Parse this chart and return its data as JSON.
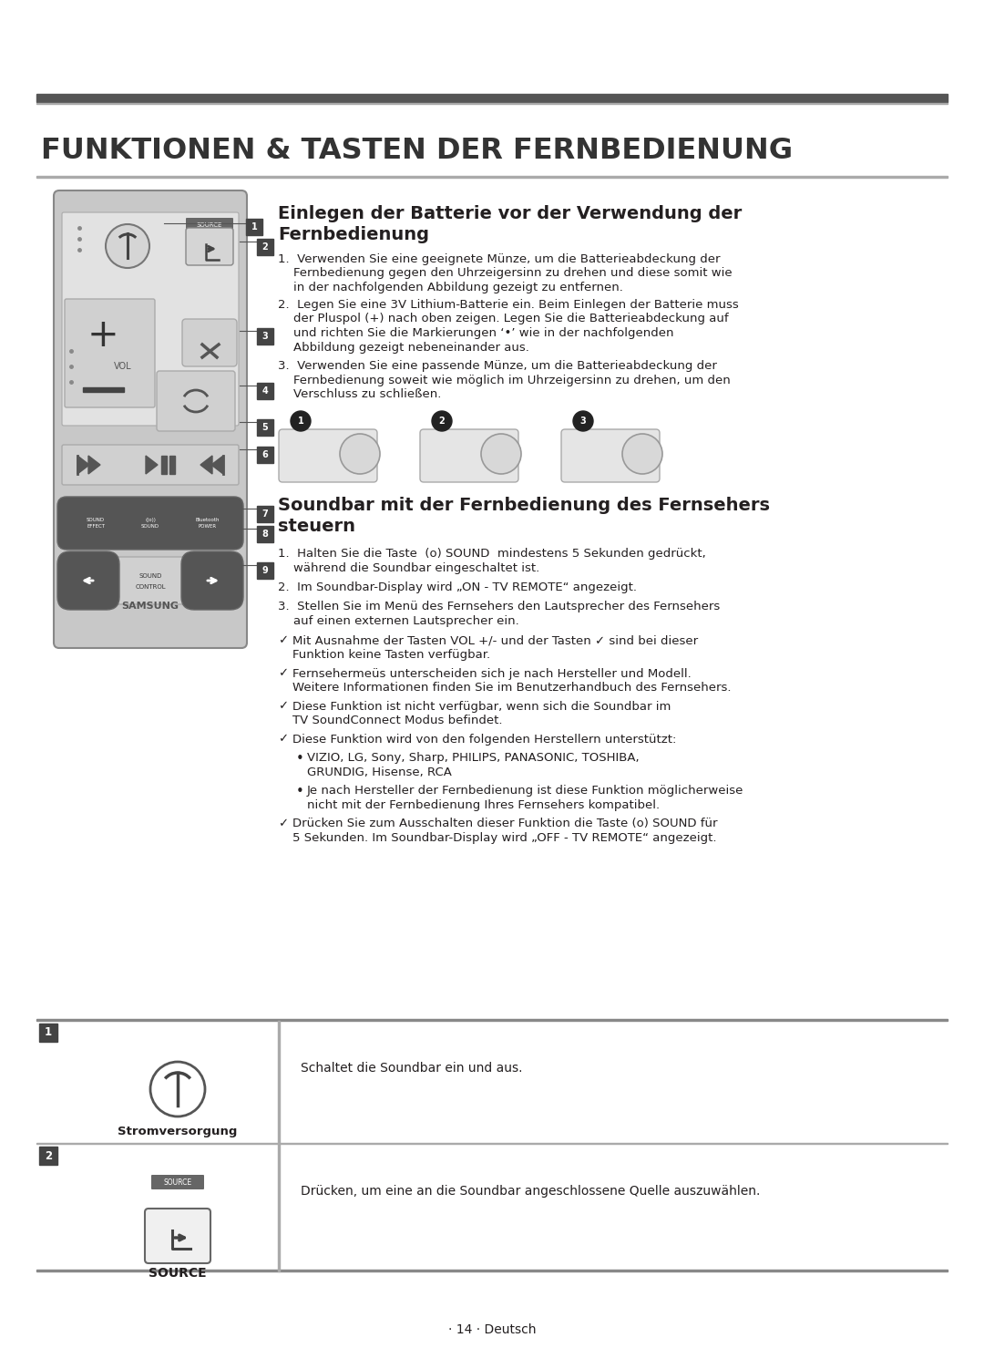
{
  "title": "FUNKTIONEN & TASTEN DER FERNBEDIENUNG",
  "section1_title_line1": "Einlegen der Batterie vor der Verwendung der",
  "section1_title_line2": "Fernbedienung",
  "section1_step1_lines": [
    "1.  Verwenden Sie eine geeignete Münze, um die Batterieabdeckung der",
    "    Fernbedienung gegen den Uhrzeigersinn zu drehen und diese somit wie",
    "    in der nachfolgenden Abbildung gezeigt zu entfernen."
  ],
  "section1_step2_lines": [
    "2.  Legen Sie eine 3V Lithium-Batterie ein. Beim Einlegen der Batterie muss",
    "    der Pluspol (+) nach oben zeigen. Legen Sie die Batterieabdeckung auf",
    "    und richten Sie die Markierungen ‘•’ wie in der nachfolgenden",
    "    Abbildung gezeigt nebeneinander aus."
  ],
  "section1_step3_lines": [
    "3.  Verwenden Sie eine passende Münze, um die Batterieabdeckung der",
    "    Fernbedienung soweit wie möglich im Uhrzeigersinn zu drehen, um den",
    "    Verschluss zu schließen."
  ],
  "section2_title_line1": "Soundbar mit der Fernbedienung des Fernsehers",
  "section2_title_line2": "steuern",
  "section2_item1_lines": [
    "1.  Halten Sie die Taste  (o) SOUND  mindestens 5 Sekunden gedrückt,",
    "    während die Soundbar eingeschaltet ist."
  ],
  "section2_item2_lines": [
    "2.  Im Soundbar-Display wird „ON - TV REMOTE“ angezeigt."
  ],
  "section2_item3_lines": [
    "3.  Stellen Sie im Menü des Fernsehers den Lautsprecher des Fernsehers",
    "    auf einen externen Lautsprecher ein."
  ],
  "section2_check1_lines": [
    "Mit Ausnahme der Tasten VOL +/- und der Tasten ✓ sind bei dieser",
    "Funktion keine Tasten verfügbar."
  ],
  "section2_check2_lines": [
    "Fernsehermeüs unterscheiden sich je nach Hersteller und Modell.",
    "Weitere Informationen finden Sie im Benutzerhandbuch des Fernsehers."
  ],
  "section2_check3_lines": [
    "Diese Funktion ist nicht verfügbar, wenn sich die Soundbar im",
    "TV SoundConnect Modus befindet."
  ],
  "section2_check4_lines": [
    "Diese Funktion wird von den folgenden Herstellern unterstützt:"
  ],
  "section2_bullet1_lines": [
    "VIZIO, LG, Sony, Sharp, PHILIPS, PANASONIC, TOSHIBA,",
    "GRUNDIG, Hisense, RCA"
  ],
  "section2_bullet2_lines": [
    "Je nach Hersteller der Fernbedienung ist diese Funktion möglicherweise",
    "nicht mit der Fernbedienung Ihres Fernsehers kompatibel."
  ],
  "section2_lastcheck_lines": [
    "Drücken Sie zum Ausschalten dieser Funktion die Taste (o) SOUND für",
    "5 Sekunden. Im Soundbar-Display wird „OFF - TV REMOTE“ angezeigt."
  ],
  "table_row1_num": "1",
  "table_row1_label": "Stromversorgung",
  "table_row1_text": "Schaltet die Soundbar ein und aus.",
  "table_row2_num": "2",
  "table_row2_label": "SOURCE",
  "table_row2_text": "Drücken, um eine an die Soundbar angeschlossene Quelle auszuwählen.",
  "page_num": "· 14 · Deutsch",
  "bg_color": "#ffffff",
  "text_color": "#231f20",
  "title_bar_color": "#555555",
  "title_bar_color2": "#999999",
  "remote_body_color": "#c8c8c8",
  "remote_top_color": "#e0e0e0",
  "remote_btn_dark": "#555555",
  "badge_color": "#444444"
}
